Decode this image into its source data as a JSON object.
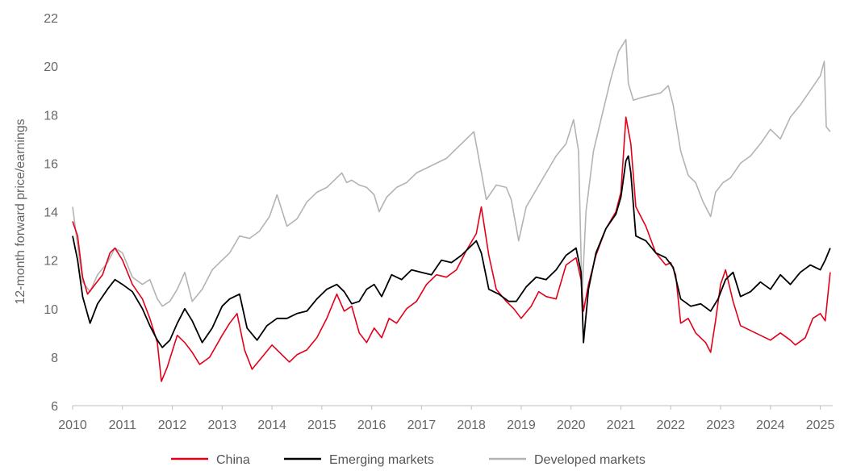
{
  "chart_data": {
    "type": "line",
    "title": "",
    "xlabel": "",
    "ylabel": "12-month forward price/earnings",
    "xlim": [
      2010,
      2025.25
    ],
    "ylim": [
      6,
      22
    ],
    "x_ticks": [
      "2010",
      "2011",
      "2012",
      "2013",
      "2014",
      "2015",
      "2016",
      "2017",
      "2018",
      "2019",
      "2020",
      "2021",
      "2022",
      "2023",
      "2024",
      "2025"
    ],
    "y_ticks": [
      6,
      8,
      10,
      12,
      14,
      16,
      18,
      20,
      22
    ],
    "grid": false,
    "legend_position": "bottom",
    "series": [
      {
        "name": "China",
        "color": "#e2001a",
        "x": [
          2010.0,
          2010.1,
          2010.2,
          2010.3,
          2010.45,
          2010.6,
          2010.75,
          2010.85,
          2011.0,
          2011.2,
          2011.4,
          2011.55,
          2011.7,
          2011.78,
          2011.9,
          2012.1,
          2012.25,
          2012.4,
          2012.55,
          2012.75,
          2013.0,
          2013.15,
          2013.3,
          2013.45,
          2013.6,
          2013.8,
          2014.0,
          2014.2,
          2014.35,
          2014.5,
          2014.7,
          2014.9,
          2015.1,
          2015.3,
          2015.45,
          2015.6,
          2015.75,
          2015.9,
          2016.05,
          2016.2,
          2016.35,
          2016.5,
          2016.7,
          2016.9,
          2017.1,
          2017.3,
          2017.5,
          2017.7,
          2017.9,
          2018.1,
          2018.2,
          2018.35,
          2018.5,
          2018.7,
          2018.85,
          2019.0,
          2019.2,
          2019.35,
          2019.5,
          2019.7,
          2019.9,
          2020.1,
          2020.2,
          2020.25,
          2020.35,
          2020.5,
          2020.7,
          2020.9,
          2021.0,
          2021.1,
          2021.2,
          2021.3,
          2021.5,
          2021.7,
          2021.9,
          2022.0,
          2022.1,
          2022.2,
          2022.35,
          2022.5,
          2022.7,
          2022.8,
          2022.9,
          2023.0,
          2023.1,
          2023.25,
          2023.4,
          2023.6,
          2023.8,
          2024.0,
          2024.2,
          2024.4,
          2024.5,
          2024.7,
          2024.85,
          2025.0,
          2025.1,
          2025.2
        ],
        "values": [
          13.6,
          13.0,
          11.3,
          10.6,
          11.0,
          11.4,
          12.3,
          12.5,
          12.0,
          11.0,
          10.4,
          9.6,
          8.6,
          7.0,
          7.6,
          8.9,
          8.6,
          8.2,
          7.7,
          8.0,
          8.9,
          9.4,
          9.8,
          8.3,
          7.5,
          8.0,
          8.5,
          8.1,
          7.8,
          8.1,
          8.3,
          8.8,
          9.6,
          10.6,
          9.9,
          10.1,
          9.0,
          8.6,
          9.2,
          8.8,
          9.6,
          9.4,
          10.0,
          10.3,
          11.0,
          11.4,
          11.3,
          11.6,
          12.4,
          13.1,
          14.2,
          12.2,
          10.8,
          10.3,
          10.0,
          9.6,
          10.1,
          10.7,
          10.5,
          10.4,
          11.8,
          12.1,
          11.2,
          9.9,
          11.0,
          12.2,
          13.3,
          14.0,
          14.8,
          17.9,
          16.8,
          14.2,
          13.4,
          12.3,
          11.8,
          11.9,
          11.4,
          9.4,
          9.6,
          9.0,
          8.6,
          8.2,
          9.5,
          11.0,
          11.6,
          10.3,
          9.3,
          9.1,
          8.9,
          8.7,
          9.0,
          8.7,
          8.5,
          8.8,
          9.6,
          9.8,
          9.5,
          11.5
        ]
      },
      {
        "name": "Emerging markets",
        "color": "#000000",
        "x": [
          2010.0,
          2010.1,
          2010.2,
          2010.35,
          2010.5,
          2010.7,
          2010.85,
          2011.0,
          2011.2,
          2011.4,
          2011.55,
          2011.7,
          2011.8,
          2011.95,
          2012.1,
          2012.25,
          2012.4,
          2012.6,
          2012.8,
          2013.0,
          2013.15,
          2013.35,
          2013.5,
          2013.7,
          2013.9,
          2014.1,
          2014.3,
          2014.5,
          2014.7,
          2014.9,
          2015.1,
          2015.3,
          2015.45,
          2015.6,
          2015.75,
          2015.9,
          2016.05,
          2016.2,
          2016.4,
          2016.6,
          2016.8,
          2017.0,
          2017.2,
          2017.4,
          2017.6,
          2017.8,
          2018.0,
          2018.1,
          2018.2,
          2018.35,
          2018.55,
          2018.75,
          2018.9,
          2019.1,
          2019.3,
          2019.5,
          2019.7,
          2019.9,
          2020.1,
          2020.2,
          2020.25,
          2020.35,
          2020.5,
          2020.7,
          2020.9,
          2021.0,
          2021.1,
          2021.15,
          2021.2,
          2021.3,
          2021.5,
          2021.7,
          2021.9,
          2022.05,
          2022.2,
          2022.4,
          2022.6,
          2022.8,
          2022.95,
          2023.1,
          2023.25,
          2023.4,
          2023.6,
          2023.8,
          2024.0,
          2024.2,
          2024.4,
          2024.6,
          2024.8,
          2025.0,
          2025.1,
          2025.2
        ],
        "values": [
          13.0,
          12.0,
          10.5,
          9.4,
          10.2,
          10.8,
          11.2,
          11.0,
          10.7,
          10.0,
          9.3,
          8.7,
          8.4,
          8.7,
          9.4,
          10.0,
          9.5,
          8.6,
          9.2,
          10.1,
          10.4,
          10.6,
          9.2,
          8.7,
          9.3,
          9.6,
          9.6,
          9.8,
          9.9,
          10.4,
          10.8,
          11.0,
          10.7,
          10.2,
          10.3,
          10.8,
          11.0,
          10.5,
          11.4,
          11.2,
          11.6,
          11.5,
          11.4,
          12.0,
          11.9,
          12.2,
          12.6,
          12.8,
          12.3,
          10.8,
          10.6,
          10.3,
          10.3,
          10.9,
          11.3,
          11.2,
          11.6,
          12.2,
          12.5,
          11.5,
          8.6,
          10.8,
          12.3,
          13.3,
          13.9,
          14.6,
          16.1,
          16.3,
          15.6,
          13.0,
          12.8,
          12.3,
          12.1,
          11.7,
          10.4,
          10.1,
          10.2,
          9.9,
          10.4,
          11.2,
          11.5,
          10.5,
          10.7,
          11.1,
          10.8,
          11.4,
          11.0,
          11.5,
          11.8,
          11.6,
          12.0,
          12.5
        ]
      },
      {
        "name": "Developed markets",
        "color": "#b3b3b3",
        "x": [
          2010.0,
          2010.1,
          2010.2,
          2010.35,
          2010.5,
          2010.7,
          2010.85,
          2011.0,
          2011.2,
          2011.4,
          2011.55,
          2011.7,
          2011.8,
          2011.95,
          2012.1,
          2012.25,
          2012.4,
          2012.6,
          2012.8,
          2013.0,
          2013.15,
          2013.35,
          2013.55,
          2013.75,
          2013.95,
          2014.1,
          2014.3,
          2014.5,
          2014.7,
          2014.9,
          2015.1,
          2015.25,
          2015.4,
          2015.5,
          2015.6,
          2015.75,
          2015.9,
          2016.05,
          2016.15,
          2016.3,
          2016.5,
          2016.7,
          2016.9,
          2017.1,
          2017.3,
          2017.5,
          2017.7,
          2017.9,
          2018.05,
          2018.15,
          2018.3,
          2018.5,
          2018.7,
          2018.8,
          2018.95,
          2019.1,
          2019.3,
          2019.5,
          2019.7,
          2019.9,
          2020.05,
          2020.15,
          2020.22,
          2020.3,
          2020.45,
          2020.6,
          2020.8,
          2020.95,
          2021.1,
          2021.15,
          2021.25,
          2021.4,
          2021.6,
          2021.8,
          2021.95,
          2022.05,
          2022.2,
          2022.35,
          2022.5,
          2022.65,
          2022.8,
          2022.9,
          2023.05,
          2023.2,
          2023.4,
          2023.6,
          2023.8,
          2024.0,
          2024.2,
          2024.4,
          2024.6,
          2024.8,
          2025.0,
          2025.08,
          2025.12,
          2025.2
        ],
        "values": [
          14.2,
          12.6,
          11.1,
          10.7,
          11.4,
          11.9,
          12.5,
          12.3,
          11.3,
          11.0,
          11.2,
          10.4,
          10.1,
          10.3,
          10.8,
          11.5,
          10.3,
          10.8,
          11.6,
          12.0,
          12.3,
          13.0,
          12.9,
          13.2,
          13.8,
          14.7,
          13.4,
          13.7,
          14.4,
          14.8,
          15.0,
          15.3,
          15.6,
          15.2,
          15.3,
          15.1,
          15.0,
          14.7,
          14.0,
          14.6,
          15.0,
          15.2,
          15.6,
          15.8,
          16.0,
          16.2,
          16.6,
          17.0,
          17.3,
          16.2,
          14.5,
          15.1,
          15.0,
          14.5,
          12.8,
          14.2,
          14.9,
          15.6,
          16.3,
          16.8,
          17.8,
          16.5,
          10.5,
          14.0,
          16.5,
          17.8,
          19.5,
          20.6,
          21.1,
          19.3,
          18.6,
          18.7,
          18.8,
          18.9,
          19.2,
          18.4,
          16.5,
          15.5,
          15.2,
          14.4,
          13.8,
          14.8,
          15.2,
          15.4,
          16.0,
          16.3,
          16.8,
          17.4,
          17.0,
          17.9,
          18.4,
          19.0,
          19.6,
          20.2,
          17.5,
          17.3
        ]
      }
    ]
  }
}
